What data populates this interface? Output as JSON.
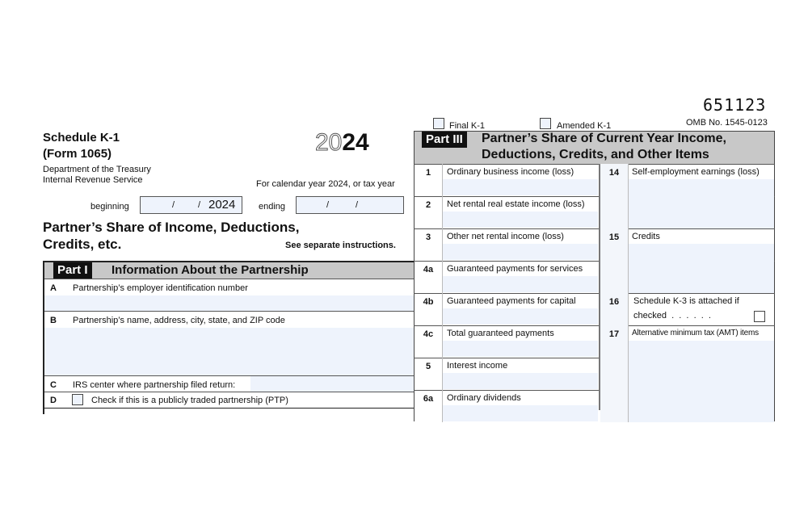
{
  "header": {
    "form_title": "Schedule K-1",
    "form_number": "(Form 1065)",
    "dept": "Department of the Treasury",
    "irs": "Internal Revenue Service",
    "year_outline": "20",
    "year_bold": "24",
    "calendar_text": "For calendar year 2024, or tax year",
    "beginning_label": "beginning",
    "beginning_sep1": "/",
    "beginning_sep2": "/",
    "beginning_year": "2024",
    "ending_label": "ending",
    "ending_sep1": "/",
    "ending_sep2": "/",
    "main_title_1": "Partner’s Share of Income, Deductions,",
    "main_title_2": "Credits, etc.",
    "instructions": "See separate instructions.",
    "form_code": "651123",
    "omb": "OMB No. 1545-0123",
    "final_k1": "Final K-1",
    "amended_k1": "Amended K-1"
  },
  "part1": {
    "tag": "Part I",
    "title": "Information About the Partnership",
    "rows": [
      {
        "letter": "A",
        "label": "Partnership’s employer identification number"
      },
      {
        "letter": "B",
        "label": "Partnership’s name, address, city, state, and ZIP code"
      },
      {
        "letter": "C",
        "label": "IRS center where partnership filed return:"
      },
      {
        "letter": "D",
        "label": "Check if this is a publicly traded partnership (PTP)"
      }
    ]
  },
  "part3": {
    "tag": "Part III",
    "title_1": "Partner’s Share of Current Year Income,",
    "title_2": "Deductions, Credits, and Other Items",
    "left": [
      {
        "num": "1",
        "label": "Ordinary business income (loss)"
      },
      {
        "num": "2",
        "label": "Net rental real estate income (loss)"
      },
      {
        "num": "3",
        "label": "Other net rental income (loss)"
      },
      {
        "num": "4a",
        "label": "Guaranteed payments for services"
      },
      {
        "num": "4b",
        "label": "Guaranteed payments for capital"
      },
      {
        "num": "4c",
        "label": "Total guaranteed payments"
      },
      {
        "num": "5",
        "label": "Interest income"
      },
      {
        "num": "6a",
        "label": "Ordinary dividends"
      }
    ],
    "right": [
      {
        "num": "14",
        "label": "Self-employment earnings (loss)"
      },
      {
        "num": "",
        "label": ""
      },
      {
        "num": "15",
        "label": "Credits"
      },
      {
        "num": "",
        "label": ""
      },
      {
        "num": "16",
        "label": "Schedule K-3 is attached if",
        "label2": "checked  .  .  .  .  .  ."
      },
      {
        "num": "17",
        "label": "Alternative minimum tax (AMT) items"
      },
      {
        "num": "",
        "label": ""
      },
      {
        "num": "",
        "label": ""
      }
    ]
  }
}
